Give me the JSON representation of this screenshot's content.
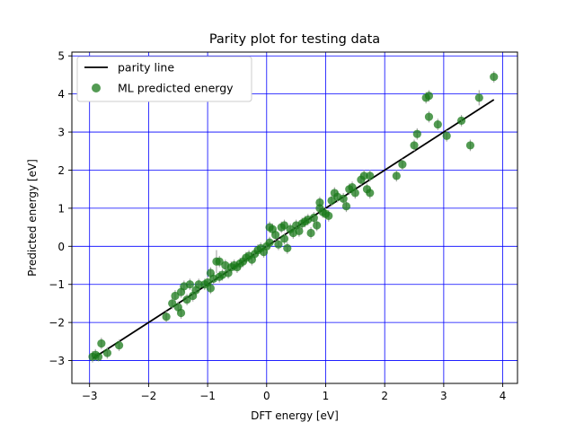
{
  "chart_data": {
    "type": "scatter",
    "title": "Parity plot for testing data",
    "xlabel": "DFT energy [eV]",
    "ylabel": "Predicted energy [eV]",
    "xlim": [
      -3.3,
      4.25
    ],
    "ylim": [
      -3.6,
      5.1
    ],
    "xticks": [
      -3,
      -2,
      -1,
      0,
      1,
      2,
      3,
      4
    ],
    "yticks": [
      -3,
      -2,
      -1,
      0,
      1,
      2,
      3,
      4,
      5
    ],
    "grid": true,
    "grid_color": "#0000ff",
    "legend_position": "top-left",
    "parity_line": {
      "name": "parity line",
      "color": "#000000",
      "x": [
        -2.95,
        3.85
      ],
      "y": [
        -2.95,
        3.85
      ]
    },
    "series": [
      {
        "name": "ML predicted energy",
        "color": "#1a7a1a",
        "error_color": "#aaaaaa",
        "points": [
          [
            -2.95,
            -2.9,
            0.15
          ],
          [
            -2.9,
            -2.85,
            0.15
          ],
          [
            -2.85,
            -2.9,
            0.12
          ],
          [
            -2.8,
            -2.55,
            0.15
          ],
          [
            -2.7,
            -2.8,
            0.15
          ],
          [
            -2.5,
            -2.6,
            0.15
          ],
          [
            -1.7,
            -1.85,
            0.15
          ],
          [
            -1.6,
            -1.5,
            0.15
          ],
          [
            -1.55,
            -1.3,
            0.15
          ],
          [
            -1.5,
            -1.6,
            0.15
          ],
          [
            -1.45,
            -1.75,
            0.15
          ],
          [
            -1.45,
            -1.2,
            0.15
          ],
          [
            -1.4,
            -1.05,
            0.15
          ],
          [
            -1.35,
            -1.4,
            0.15
          ],
          [
            -1.3,
            -1.0,
            0.15
          ],
          [
            -1.25,
            -1.3,
            0.15
          ],
          [
            -1.2,
            -1.15,
            0.15
          ],
          [
            -1.15,
            -1.0,
            0.15
          ],
          [
            -1.05,
            -1.0,
            0.15
          ],
          [
            -1.0,
            -0.95,
            0.15
          ],
          [
            -0.95,
            -1.1,
            0.15
          ],
          [
            -0.95,
            -0.7,
            0.15
          ],
          [
            -0.9,
            -0.85,
            0.15
          ],
          [
            -0.85,
            -0.4,
            0.3
          ],
          [
            -0.8,
            -0.4,
            0.15
          ],
          [
            -0.8,
            -0.8,
            0.15
          ],
          [
            -0.75,
            -0.75,
            0.15
          ],
          [
            -0.7,
            -0.5,
            0.15
          ],
          [
            -0.65,
            -0.7,
            0.15
          ],
          [
            -0.6,
            -0.55,
            0.15
          ],
          [
            -0.55,
            -0.5,
            0.15
          ],
          [
            -0.5,
            -0.55,
            0.15
          ],
          [
            -0.45,
            -0.45,
            0.15
          ],
          [
            -0.4,
            -0.4,
            0.15
          ],
          [
            -0.35,
            -0.3,
            0.15
          ],
          [
            -0.3,
            -0.25,
            0.15
          ],
          [
            -0.25,
            -0.35,
            0.15
          ],
          [
            -0.2,
            -0.2,
            0.15
          ],
          [
            -0.15,
            -0.1,
            0.15
          ],
          [
            -0.1,
            -0.05,
            0.15
          ],
          [
            -0.05,
            -0.15,
            0.15
          ],
          [
            0.0,
            0.0,
            0.15
          ],
          [
            0.05,
            0.1,
            0.15
          ],
          [
            0.05,
            0.5,
            0.15
          ],
          [
            0.1,
            0.45,
            0.15
          ],
          [
            0.15,
            0.3,
            0.15
          ],
          [
            0.2,
            0.05,
            0.15
          ],
          [
            0.25,
            0.5,
            0.15
          ],
          [
            0.3,
            0.2,
            0.15
          ],
          [
            0.3,
            0.55,
            0.15
          ],
          [
            0.35,
            -0.05,
            0.15
          ],
          [
            0.4,
            0.45,
            0.15
          ],
          [
            0.45,
            0.35,
            0.15
          ],
          [
            0.5,
            0.55,
            0.15
          ],
          [
            0.55,
            0.4,
            0.15
          ],
          [
            0.6,
            0.6,
            0.15
          ],
          [
            0.65,
            0.65,
            0.15
          ],
          [
            0.7,
            0.7,
            0.15
          ],
          [
            0.75,
            0.35,
            0.15
          ],
          [
            0.8,
            0.75,
            0.15
          ],
          [
            0.85,
            0.55,
            0.15
          ],
          [
            0.9,
            1.0,
            0.15
          ],
          [
            0.9,
            1.15,
            0.15
          ],
          [
            0.95,
            0.9,
            0.15
          ],
          [
            1.0,
            0.85,
            0.15
          ],
          [
            1.05,
            0.8,
            0.15
          ],
          [
            1.1,
            1.2,
            0.15
          ],
          [
            1.15,
            1.4,
            0.15
          ],
          [
            1.2,
            1.3,
            0.15
          ],
          [
            1.3,
            1.25,
            0.15
          ],
          [
            1.35,
            1.05,
            0.15
          ],
          [
            1.4,
            1.5,
            0.15
          ],
          [
            1.45,
            1.55,
            0.15
          ],
          [
            1.5,
            1.4,
            0.15
          ],
          [
            1.6,
            1.75,
            0.15
          ],
          [
            1.65,
            1.85,
            0.15
          ],
          [
            1.7,
            1.5,
            0.15
          ],
          [
            1.75,
            1.4,
            0.15
          ],
          [
            1.75,
            1.85,
            0.15
          ],
          [
            2.2,
            1.85,
            0.15
          ],
          [
            2.3,
            2.15,
            0.15
          ],
          [
            2.5,
            2.65,
            0.15
          ],
          [
            2.55,
            2.95,
            0.15
          ],
          [
            2.7,
            3.9,
            0.15
          ],
          [
            2.75,
            3.4,
            0.15
          ],
          [
            2.75,
            3.95,
            0.15
          ],
          [
            2.9,
            3.2,
            0.15
          ],
          [
            3.05,
            2.9,
            0.15
          ],
          [
            3.3,
            3.3,
            0.15
          ],
          [
            3.45,
            2.65,
            0.15
          ],
          [
            3.6,
            3.9,
            0.2
          ],
          [
            3.85,
            4.45,
            0.15
          ]
        ]
      }
    ]
  }
}
